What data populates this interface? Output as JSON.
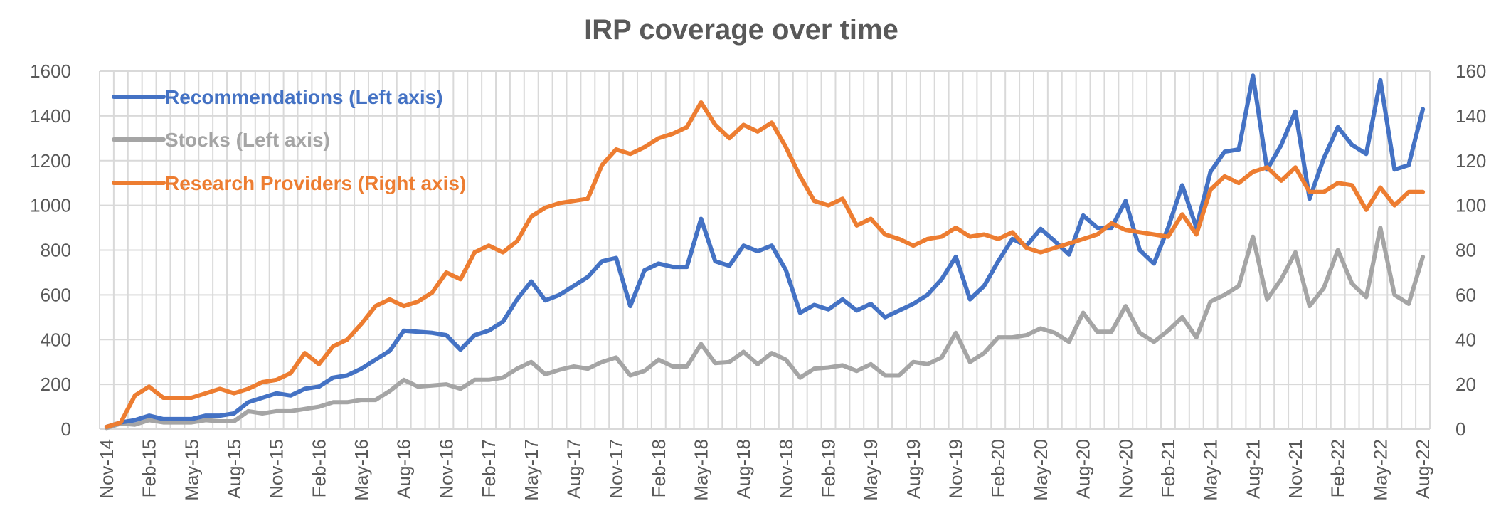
{
  "chart_data": {
    "type": "line",
    "title": "IRP coverage over time",
    "xlabel": "",
    "ylabel": "",
    "y2label": "",
    "ylim": [
      0,
      1600
    ],
    "y2lim": [
      0,
      160
    ],
    "y_ticks": [
      0,
      200,
      400,
      600,
      800,
      1000,
      1200,
      1400,
      1600
    ],
    "y2_ticks": [
      0,
      20,
      40,
      60,
      80,
      100,
      120,
      140,
      160
    ],
    "x_tick_labels": [
      "Nov-14",
      "Feb-15",
      "May-15",
      "Aug-15",
      "Nov-15",
      "Feb-16",
      "May-16",
      "Aug-16",
      "Nov-16",
      "Feb-17",
      "May-17",
      "Aug-17",
      "Nov-17",
      "Feb-18",
      "May-18",
      "Aug-18",
      "Nov-18",
      "Feb-19",
      "May-19",
      "Aug-19",
      "Nov-19",
      "Feb-20",
      "May-20",
      "Aug-20",
      "Nov-20",
      "Feb-21",
      "May-21",
      "Aug-21",
      "Nov-21",
      "Feb-22",
      "May-22",
      "Aug-22"
    ],
    "grid": true,
    "legend_position": "top-left",
    "series": [
      {
        "name": "Recommendations  (Left axis)",
        "axis": "left",
        "color": "#4472c4",
        "values": [
          10,
          30,
          40,
          60,
          45,
          45,
          45,
          60,
          60,
          70,
          120,
          140,
          160,
          150,
          180,
          190,
          230,
          240,
          270,
          310,
          350,
          440,
          435,
          430,
          420,
          355,
          420,
          440,
          480,
          580,
          660,
          575,
          600,
          640,
          680,
          750,
          765,
          550,
          710,
          740,
          725,
          725,
          940,
          750,
          730,
          820,
          795,
          820,
          710,
          520,
          555,
          535,
          580,
          530,
          560,
          500,
          530,
          560,
          600,
          670,
          770,
          580,
          640,
          750,
          850,
          820,
          895,
          840,
          780,
          955,
          900,
          900,
          1020,
          800,
          740,
          900,
          1090,
          900,
          1150,
          1240,
          1250,
          1580,
          1160,
          1270,
          1420,
          1030,
          1210,
          1350,
          1270,
          1230,
          1560,
          1160,
          1180,
          1430
        ]
      },
      {
        "name": "Stocks (Left axis)",
        "axis": "left",
        "color": "#a5a5a5",
        "values": [
          5,
          25,
          20,
          40,
          30,
          30,
          30,
          40,
          35,
          35,
          80,
          70,
          80,
          80,
          90,
          100,
          120,
          120,
          130,
          130,
          170,
          220,
          190,
          195,
          200,
          180,
          220,
          220,
          230,
          270,
          300,
          245,
          265,
          280,
          270,
          300,
          320,
          240,
          260,
          310,
          280,
          280,
          380,
          295,
          300,
          345,
          290,
          340,
          310,
          230,
          270,
          275,
          285,
          260,
          290,
          240,
          240,
          300,
          290,
          320,
          430,
          300,
          340,
          410,
          410,
          420,
          450,
          430,
          390,
          520,
          435,
          435,
          550,
          430,
          390,
          440,
          500,
          410,
          570,
          600,
          640,
          860,
          580,
          670,
          790,
          550,
          630,
          800,
          650,
          590,
          900,
          600,
          560,
          770
        ]
      },
      {
        "name": "Research Providers (Right axis)",
        "axis": "right",
        "color": "#ed7d31",
        "values": [
          1,
          3,
          15,
          19,
          14,
          14,
          14,
          16,
          18,
          16,
          18,
          21,
          22,
          25,
          34,
          29,
          37,
          40,
          47,
          55,
          58,
          55,
          57,
          61,
          70,
          67,
          79,
          82,
          79,
          84,
          95,
          99,
          101,
          102,
          103,
          118,
          125,
          123,
          126,
          130,
          132,
          135,
          146,
          136,
          130,
          136,
          133,
          137,
          126,
          113,
          102,
          100,
          103,
          91,
          94,
          87,
          85,
          82,
          85,
          86,
          90,
          86,
          87,
          85,
          88,
          81,
          79,
          81,
          83,
          85,
          87,
          92,
          89,
          88,
          87,
          86,
          96,
          87,
          107,
          113,
          110,
          115,
          117,
          111,
          117,
          106,
          106,
          110,
          109,
          98,
          108,
          100,
          106,
          106
        ]
      }
    ]
  }
}
